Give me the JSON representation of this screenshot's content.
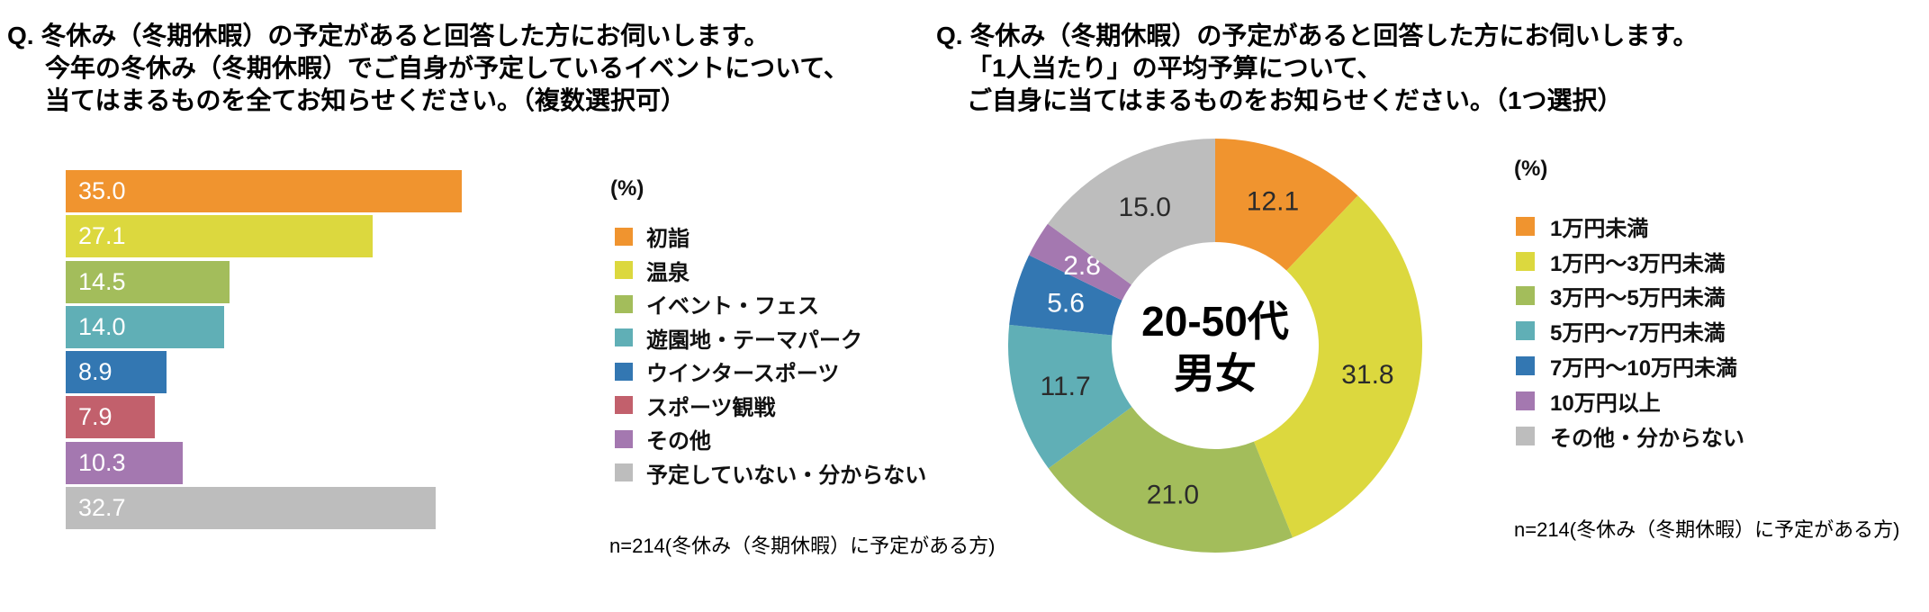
{
  "chart_data": [
    {
      "type": "bar",
      "orientation": "horizontal",
      "title_lines": [
        "Q. 冬休み（冬期休暇）の予定があると回答した方にお伺いします。",
        "今年の冬休み（冬期休暇）でご自身が予定しているイベントについて、",
        "当てはまるものを全てお知らせください。（複数選択可）"
      ],
      "unit_label": "(%)",
      "categories": [
        "初詣",
        "温泉",
        "イベント・フェス",
        "遊園地・テーマパーク",
        "ウインタースポーツ",
        "スポーツ観戦",
        "その他",
        "予定していない・分からない"
      ],
      "values": [
        35.0,
        27.1,
        14.5,
        14.0,
        8.9,
        7.9,
        10.3,
        32.7
      ],
      "colors": [
        "#F0942F",
        "#DCD83E",
        "#A3BD5B",
        "#60AFB6",
        "#3377B2",
        "#C2606C",
        "#A478B0",
        "#BDBDBD"
      ],
      "xlim": [
        0,
        35
      ],
      "value_label_position": "inside-left",
      "value_label_color": "#FFFFFF",
      "grid": false,
      "legend_position": "right",
      "footnote": "n=214(冬休み（冬期休暇）に予定がある方)"
    },
    {
      "type": "pie",
      "subtype": "donut",
      "title_lines": [
        "Q. 冬休み（冬期休暇）の予定があると回答した方にお伺いします。",
        "「1人当たり」の平均予算について、",
        "ご自身に当てはまるものをお知らせください。（1つ選択）"
      ],
      "unit_label": "(%)",
      "center_label_lines": [
        "20-50代",
        "男女"
      ],
      "categories": [
        "1万円未満",
        "1万円〜3万円未満",
        "3万円〜5万円未満",
        "5万円〜7万円未満",
        "7万円〜10万円未満",
        "10万円以上",
        "その他・分からない"
      ],
      "values": [
        12.1,
        31.8,
        21.0,
        11.7,
        5.6,
        2.8,
        15.0
      ],
      "colors": [
        "#F0942F",
        "#DCD83E",
        "#A3BD5B",
        "#60AFB6",
        "#3377B2",
        "#A478B0",
        "#BDBDBD"
      ],
      "value_label_colors": [
        "#2B2B2B",
        "#2B2B2B",
        "#2B2B2B",
        "#2B2B2B",
        "#FFFFFF",
        "#FFFFFF",
        "#2B2B2B"
      ],
      "start_angle_deg": 0,
      "direction": "clockwise",
      "grid": false,
      "legend_position": "right",
      "footnote": "n=214(冬休み（冬期休暇）に予定がある方)"
    }
  ]
}
